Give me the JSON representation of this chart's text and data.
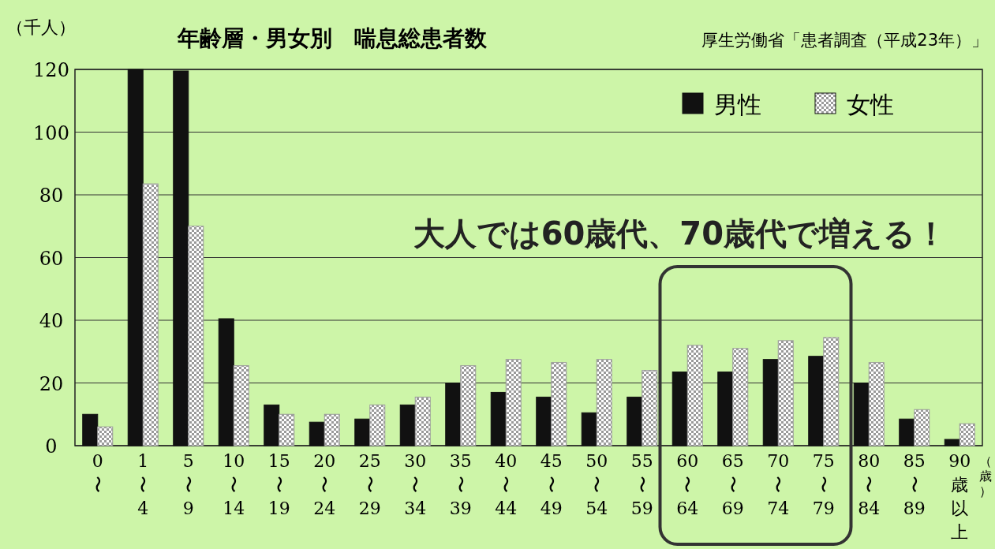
{
  "chart_data": {
    "type": "bar",
    "title": "年齢層・男女別　喘息総患者数",
    "ylabel": "（千人）",
    "xlabel": "（歳）",
    "annotations": [
      "厚生労働省「患者調査（平成23年）」",
      "大人では60歳代、70歳代で増える！"
    ],
    "categories": [
      "0〜",
      "1〜4",
      "5〜9",
      "10〜14",
      "15〜19",
      "20〜24",
      "25〜29",
      "30〜34",
      "35〜39",
      "40〜44",
      "45〜49",
      "50〜54",
      "55〜59",
      "60〜64",
      "65〜69",
      "70〜74",
      "75〜79",
      "80〜84",
      "85〜89",
      "90歳以上"
    ],
    "series": [
      {
        "name": "男性",
        "color": "#111111",
        "values": [
          10,
          120,
          119.5,
          40.5,
          13,
          7.5,
          8.5,
          13,
          20,
          17,
          15.5,
          10.5,
          15.5,
          23.5,
          23.5,
          27.5,
          28.5,
          20,
          8.5,
          2
        ]
      },
      {
        "name": "女性",
        "color": "#9a9a9a",
        "values": [
          6,
          83.5,
          70,
          25.5,
          10,
          10,
          13,
          15.5,
          25.5,
          27.5,
          26.5,
          27.5,
          24,
          32,
          31,
          33.5,
          34.5,
          26.5,
          11.5,
          7
        ]
      }
    ],
    "ylim": [
      0,
      120
    ],
    "yticks": [
      0,
      20,
      40,
      60,
      80,
      100,
      120
    ],
    "grid": "y",
    "legend": "top right"
  }
}
